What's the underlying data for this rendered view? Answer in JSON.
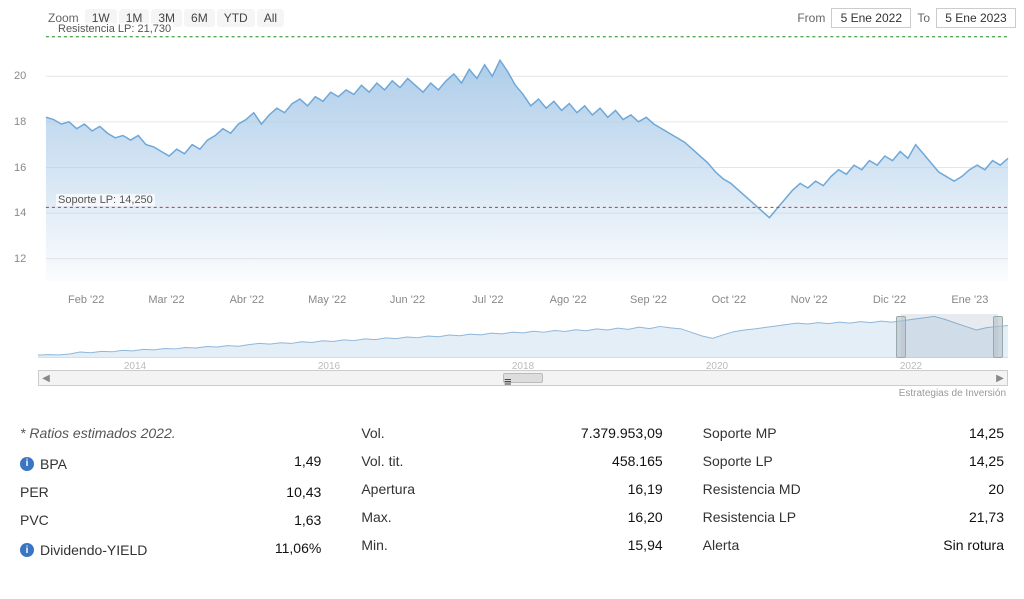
{
  "toolbar": {
    "zoom_label": "Zoom",
    "buttons": [
      "1W",
      "1M",
      "3M",
      "6M",
      "YTD",
      "All"
    ],
    "from_label": "From",
    "to_label": "To",
    "from_value": "5 Ene 2022",
    "to_value": "5 Ene 2023"
  },
  "chart": {
    "type": "area",
    "background_color": "#ffffff",
    "area_fill_top": "#aecde9",
    "area_fill_bottom": "rgba(174,205,233,0.05)",
    "line_color": "#6fa8d8",
    "line_width": 1.5,
    "grid_color": "#e6e6e6",
    "ylim": [
      11,
      21.5
    ],
    "yticks": [
      12,
      14,
      16,
      18,
      20
    ],
    "resistance": {
      "label": "Resistencia LP: 21,730",
      "value": 21.73,
      "color": "#1a8a1a",
      "dash": "3,3"
    },
    "support": {
      "label": "Soporte LP: 14,250",
      "value": 14.25,
      "color": "#cc3333",
      "dash": "3,3"
    },
    "x_labels": [
      "Feb '22",
      "Mar '22",
      "Abr '22",
      "May '22",
      "Jun '22",
      "Jul '22",
      "Ago '22",
      "Sep '22",
      "Oct '22",
      "Nov '22",
      "Dic '22",
      "Ene '23"
    ],
    "series": [
      18.2,
      18.1,
      17.9,
      18.0,
      17.7,
      17.9,
      17.6,
      17.8,
      17.5,
      17.3,
      17.4,
      17.2,
      17.4,
      17.0,
      16.9,
      16.7,
      16.5,
      16.8,
      16.6,
      17.0,
      16.8,
      17.2,
      17.4,
      17.7,
      17.5,
      17.9,
      18.1,
      18.4,
      17.9,
      18.3,
      18.6,
      18.4,
      18.8,
      19.0,
      18.7,
      19.1,
      18.9,
      19.3,
      19.1,
      19.4,
      19.2,
      19.6,
      19.3,
      19.7,
      19.4,
      19.8,
      19.5,
      19.9,
      19.6,
      19.3,
      19.7,
      19.4,
      19.8,
      20.1,
      19.7,
      20.3,
      19.9,
      20.5,
      20.0,
      20.7,
      20.2,
      19.6,
      19.2,
      18.7,
      19.0,
      18.6,
      18.9,
      18.5,
      18.8,
      18.4,
      18.7,
      18.3,
      18.6,
      18.2,
      18.5,
      18.1,
      18.3,
      18.0,
      18.2,
      17.9,
      17.7,
      17.5,
      17.3,
      17.1,
      16.8,
      16.5,
      16.2,
      15.8,
      15.5,
      15.3,
      15.0,
      14.7,
      14.4,
      14.1,
      13.8,
      14.2,
      14.6,
      15.0,
      15.3,
      15.1,
      15.4,
      15.2,
      15.6,
      15.9,
      15.7,
      16.1,
      15.9,
      16.3,
      16.1,
      16.5,
      16.3,
      16.7,
      16.4,
      17.0,
      16.6,
      16.2,
      15.8,
      15.6,
      15.4,
      15.6,
      15.9,
      16.1,
      15.9,
      16.3,
      16.1,
      16.4
    ]
  },
  "navigator": {
    "year_labels": [
      "2014",
      "2016",
      "2018",
      "2020",
      "2022"
    ],
    "line_color": "#8fb7da",
    "fill_color": "rgba(174,205,233,0.35)",
    "selection_start_pct": 89,
    "selection_end_pct": 99,
    "series": [
      4,
      4.2,
      4.1,
      4.5,
      5.3,
      5.0,
      5.6,
      5.4,
      6.0,
      5.8,
      6.4,
      6.2,
      6.8,
      6.6,
      7.2,
      7.0,
      7.6,
      7.4,
      8.0,
      7.7,
      8.4,
      8.9,
      8.6,
      9.2,
      8.9,
      9.6,
      9.3,
      10.0,
      9.7,
      10.4,
      10.1,
      10.8,
      10.5,
      11.2,
      10.9,
      11.6,
      11.3,
      12.0,
      11.7,
      12.4,
      12.1,
      12.8,
      12.5,
      13.2,
      12.9,
      13.6,
      13.3,
      14.0,
      13.6,
      14.3,
      13.9,
      14.6,
      14.2,
      15.0,
      14.5,
      15.3,
      14.8,
      15.7,
      15.1,
      16.0,
      15.4,
      15.0,
      13.5,
      12.0,
      11.0,
      12.5,
      13.8,
      14.5,
      15.0,
      15.6,
      16.2,
      16.8,
      17.4,
      17.0,
      17.6,
      17.2,
      17.8,
      17.4,
      18.0,
      17.6,
      18.2,
      17.8,
      18.4,
      19.0,
      19.6,
      20.2,
      19.0,
      17.5,
      16.0,
      14.5,
      15.5,
      16.0,
      16.4
    ]
  },
  "credit": "Estrategias de Inversión",
  "stats": {
    "estimate_note": "* Ratios estimados 2022.",
    "col1": [
      {
        "label": "BPA",
        "value": "1,49",
        "info": true
      },
      {
        "label": "PER",
        "value": "10,43"
      },
      {
        "label": "PVC",
        "value": "1,63"
      },
      {
        "label": "Dividendo-YIELD",
        "value": "11,06%",
        "info": true
      }
    ],
    "col2": [
      {
        "label": "Vol.",
        "value": "7.379.953,09"
      },
      {
        "label": "Vol. tit.",
        "value": "458.165"
      },
      {
        "label": "Apertura",
        "value": "16,19"
      },
      {
        "label": "Max.",
        "value": "16,20"
      },
      {
        "label": "Min.",
        "value": "15,94"
      }
    ],
    "col3": [
      {
        "label": "Soporte MP",
        "value": "14,25"
      },
      {
        "label": "Soporte LP",
        "value": "14,25"
      },
      {
        "label": "Resistencia MD",
        "value": "20"
      },
      {
        "label": "Resistencia LP",
        "value": "21,73"
      },
      {
        "label": "Alerta",
        "value": "Sin rotura"
      }
    ]
  }
}
